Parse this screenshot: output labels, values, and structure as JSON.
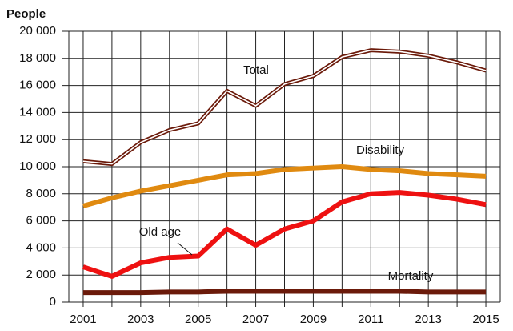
{
  "chart_data": {
    "type": "line",
    "y_label": "People",
    "x": [
      2001,
      2002,
      2003,
      2004,
      2005,
      2006,
      2007,
      2008,
      2009,
      2010,
      2011,
      2012,
      2013,
      2014,
      2015
    ],
    "xlim": [
      2000.5,
      2015.5
    ],
    "xticks": [
      2001,
      2003,
      2005,
      2007,
      2009,
      2011,
      2013,
      2015
    ],
    "ylim": [
      0,
      20000
    ],
    "yticks": [
      0,
      {
        "value": 2000,
        "label": "2 000"
      },
      {
        "value": 4000,
        "label": "4 000"
      },
      {
        "value": 6000,
        "label": "6 000"
      },
      {
        "value": 8000,
        "label": "8 000"
      },
      {
        "value": 10000,
        "label": "10 000"
      },
      {
        "value": 12000,
        "label": "12 000"
      },
      {
        "value": 14000,
        "label": "14 000"
      },
      {
        "value": 16000,
        "label": "16 000"
      },
      {
        "value": 18000,
        "label": "18 000"
      },
      {
        "value": 20000,
        "label": "20 000"
      }
    ],
    "grid": true,
    "series": [
      {
        "name": "Total",
        "color": "#6b1a0a",
        "double": true,
        "values": [
          10400,
          10200,
          11800,
          12700,
          13200,
          15600,
          14500,
          16100,
          16700,
          18100,
          18600,
          18500,
          18200,
          17700,
          17100
        ]
      },
      {
        "name": "Disability",
        "color": "#e08a10",
        "values": [
          7100,
          7700,
          8200,
          8600,
          9000,
          9400,
          9500,
          9800,
          9900,
          10000,
          9800,
          9700,
          9500,
          9400,
          9300
        ]
      },
      {
        "name": "Old age",
        "color": "#ee1111",
        "values": [
          2600,
          1900,
          2900,
          3300,
          3400,
          5400,
          4200,
          5400,
          6000,
          7400,
          8000,
          8100,
          7900,
          7600,
          7200
        ]
      },
      {
        "name": "Mortality",
        "color": "#6b1a0a",
        "values": [
          700,
          700,
          700,
          750,
          750,
          800,
          800,
          800,
          800,
          800,
          800,
          800,
          750,
          750,
          750
        ]
      }
    ]
  }
}
